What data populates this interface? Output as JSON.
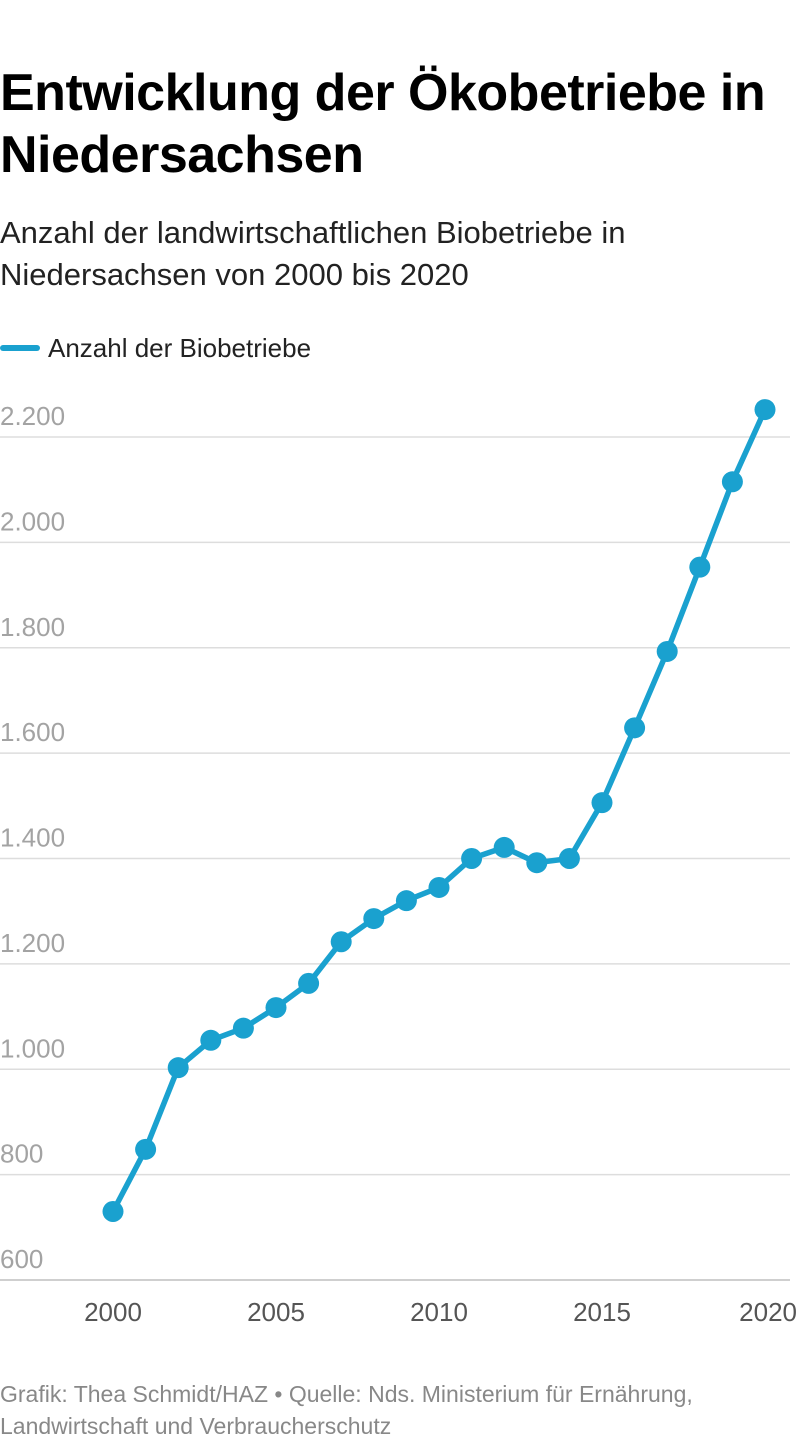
{
  "chart_data": {
    "type": "line",
    "title": "Entwicklung der Ökobetriebe in Niedersachsen",
    "subtitle": "Anzahl der landwirtschaftlichen Biobetriebe in Niedersachsen von 2000 bis 2020",
    "x": [
      2000,
      2001,
      2002,
      2003,
      2004,
      2005,
      2006,
      2007,
      2008,
      2009,
      2010,
      2011,
      2012,
      2013,
      2014,
      2015,
      2016,
      2017,
      2018,
      2019,
      2020
    ],
    "series": [
      {
        "name": "Anzahl der Biobetriebe",
        "color": "#1aa1cf",
        "values": [
          730,
          848,
          1003,
          1055,
          1078,
          1117,
          1163,
          1242,
          1286,
          1320,
          1345,
          1400,
          1421,
          1392,
          1400,
          1506,
          1648,
          1793,
          1953,
          2115,
          2252
        ]
      }
    ],
    "ylim": [
      600,
      2200
    ],
    "yticks": [
      600,
      800,
      1000,
      1200,
      1400,
      1600,
      1800,
      2000,
      2200
    ],
    "ytick_labels": [
      "600",
      "800",
      "1.000",
      "1.200",
      "1.400",
      "1.600",
      "1.800",
      "2.000",
      "2.200"
    ],
    "xticks": [
      2000,
      2005,
      2010,
      2015,
      2020
    ],
    "xtick_labels": [
      "2000",
      "2005",
      "2010",
      "2015",
      "2020"
    ],
    "xlabel": "",
    "ylabel": "",
    "grid": true,
    "legend": "top-left"
  },
  "footer": "Grafik: Thea Schmidt/HAZ • Quelle: Nds. Ministerium für Ernährung, Landwirtschaft und Verbraucherschutz",
  "colors": {
    "line": "#1aa1cf",
    "grid": "#dddddd",
    "ytick": "#a3a3a3",
    "xtick": "#555555"
  }
}
